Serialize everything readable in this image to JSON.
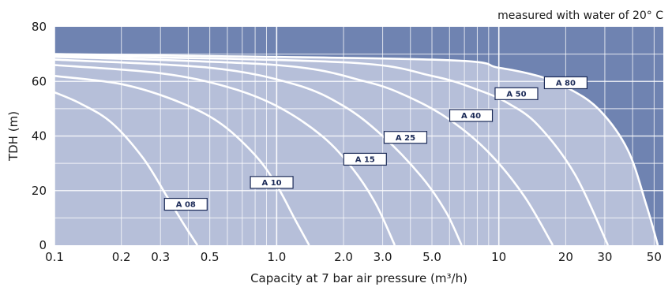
{
  "chart_data": {
    "type": "line",
    "title": "",
    "note": "measured with water of 20° C",
    "xlabel": "Capacity at 7 bar air pressure (m³/h)",
    "ylabel": "TDH (m)",
    "x_scale": "log",
    "xlim": [
      0.1,
      55
    ],
    "ylim": [
      0,
      80
    ],
    "x_ticks": [
      0.1,
      0.2,
      0.3,
      0.5,
      1.0,
      2.0,
      3.0,
      5.0,
      10,
      20,
      30,
      50
    ],
    "x_tick_labels": [
      "0.1",
      "0.2",
      "0.3",
      "0.5",
      "1.0",
      "2.0",
      "3.0",
      "5.0",
      "10",
      "20",
      "30",
      "50"
    ],
    "y_ticks": [
      0,
      20,
      40,
      60,
      80
    ],
    "y_tick_labels": [
      "0",
      "20",
      "40",
      "60",
      "80"
    ],
    "grid": true,
    "colors": {
      "background": "#6f83b1",
      "envelope": "#b6bfd9",
      "curve": "#ffffff",
      "grid": "#ffffff"
    },
    "series": [
      {
        "name": "A 08",
        "label_at": [
          0.39,
          15
        ],
        "points": [
          [
            0.1,
            56
          ],
          [
            0.13,
            52
          ],
          [
            0.18,
            45
          ],
          [
            0.25,
            32
          ],
          [
            0.32,
            18
          ],
          [
            0.38,
            8
          ],
          [
            0.44,
            0
          ]
        ]
      },
      {
        "name": "A 10",
        "label_at": [
          0.95,
          23
        ],
        "points": [
          [
            0.1,
            62
          ],
          [
            0.2,
            59
          ],
          [
            0.35,
            53
          ],
          [
            0.55,
            45
          ],
          [
            0.8,
            33
          ],
          [
            1.0,
            22
          ],
          [
            1.2,
            10
          ],
          [
            1.4,
            0
          ]
        ]
      },
      {
        "name": "A 15",
        "label_at": [
          2.5,
          31.5
        ],
        "points": [
          [
            0.1,
            66
          ],
          [
            0.3,
            63
          ],
          [
            0.6,
            58
          ],
          [
            1.0,
            51
          ],
          [
            1.6,
            40
          ],
          [
            2.2,
            28
          ],
          [
            2.8,
            15
          ],
          [
            3.4,
            0
          ]
        ]
      },
      {
        "name": "A 25",
        "label_at": [
          3.8,
          39.5
        ],
        "points": [
          [
            0.1,
            68
          ],
          [
            0.5,
            65
          ],
          [
            1.2,
            59
          ],
          [
            2.0,
            51
          ],
          [
            3.0,
            40
          ],
          [
            4.5,
            25
          ],
          [
            5.8,
            12
          ],
          [
            6.8,
            0
          ]
        ]
      },
      {
        "name": "A 40",
        "label_at": [
          7.5,
          47.5
        ],
        "points": [
          [
            0.1,
            69
          ],
          [
            1.0,
            66
          ],
          [
            2.5,
            60
          ],
          [
            4.0,
            54
          ],
          [
            6.0,
            46
          ],
          [
            9.0,
            34
          ],
          [
            13.0,
            18
          ],
          [
            17.5,
            0
          ]
        ]
      },
      {
        "name": "A 50",
        "label_at": [
          12,
          55.5
        ],
        "points": [
          [
            0.1,
            69.5
          ],
          [
            2.0,
            67
          ],
          [
            5.0,
            62
          ],
          [
            8.0,
            57
          ],
          [
            11.0,
            52
          ],
          [
            15.0,
            44
          ],
          [
            22.0,
            26
          ],
          [
            31.0,
            0
          ]
        ]
      },
      {
        "name": "A 80",
        "label_at": [
          20,
          59.5
        ],
        "points": [
          [
            0.1,
            70
          ],
          [
            5.0,
            68
          ],
          [
            10.0,
            65
          ],
          [
            15.0,
            62
          ],
          [
            20.0,
            58
          ],
          [
            28.0,
            50
          ],
          [
            38.0,
            35
          ],
          [
            46.0,
            15
          ],
          [
            52.0,
            0
          ]
        ]
      }
    ]
  }
}
